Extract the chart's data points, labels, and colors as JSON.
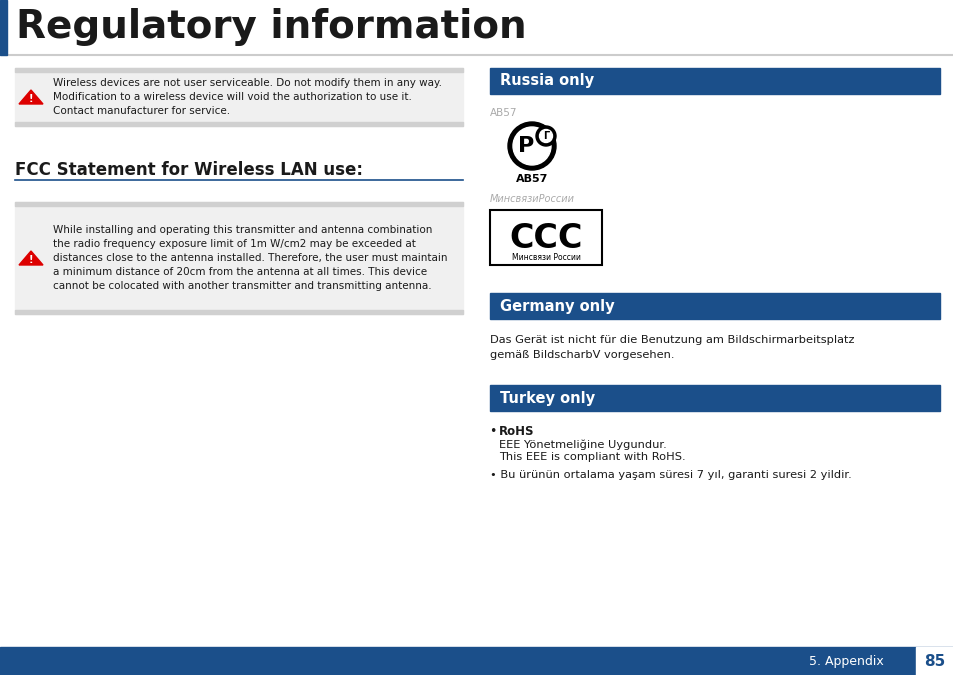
{
  "bg_color": "#ffffff",
  "title": "Regulatory information",
  "title_fontsize": 28,
  "header_bg": "#1b4f8a",
  "left_blue_bar": "#1b4f8a",
  "warning1_text": "Wireless devices are not user serviceable. Do not modify them in any way.\nModification to a wireless device will void the authorization to use it.\nContact manufacturer for service.",
  "fcc_title": "FCC Statement for Wireless LAN use:",
  "warning2_text": "While installing and operating this transmitter and antenna combination\nthe radio frequency exposure limit of 1m W/cm2 may be exceeded at\ndistances close to the antenna installed. Therefore, the user must maintain\na minimum distance of 20cm from the antenna at all times. This device\ncannot be colocated with another transmitter and transmitting antenna.",
  "russia_title": "Russia only",
  "russia_ab57_gray": "AB57",
  "russia_ab57_black": "AB57",
  "russia_minsvyazi_top": "МинсвязиРоссии",
  "russia_ccc": "CCC",
  "russia_ccc_sub": "Минсвязи России",
  "germany_title": "Germany only",
  "germany_line1": "Das Gerät ist nicht für die Benutzung am Bildschirmarbeitsplatz",
  "germany_line2": "gemäß BildscharbV vorgesehen.",
  "turkey_title": "Turkey only",
  "turkey_bullet1_prefix": "• RoHS",
  "turkey_sub1": "  EEE Yönetmeliğine Uygundur.",
  "turkey_sub2": "  This EEE is compliant with RoHS.",
  "turkey_bullet2": "• Bu ürünün ortalama yaşam süresi 7 yıl, garanti suresi 2 yildir.",
  "footer_text": "5. Appendix",
  "footer_page": "85",
  "footer_bg": "#1b4f8a",
  "warning_bg": "#f0f0f0",
  "warning_border": "#d0d0d0",
  "text_color": "#1a1a1a",
  "gray_text": "#aaaaaa",
  "red_triangle": "#dd0000"
}
